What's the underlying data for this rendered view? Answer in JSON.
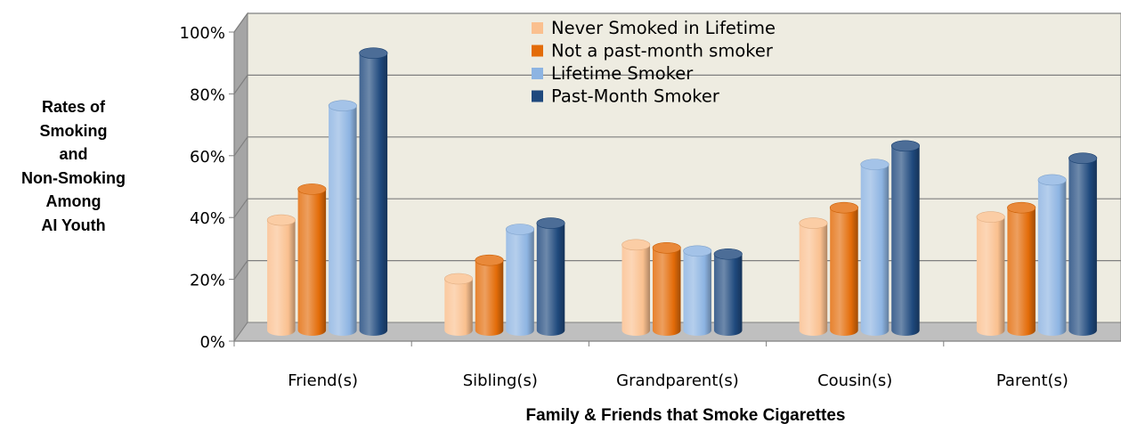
{
  "chart_data": {
    "type": "bar",
    "title": "",
    "ylabel_lines": [
      "Rates of",
      "Smoking",
      "and",
      "Non-Smoking",
      "Among",
      "AI Youth"
    ],
    "xlabel": "Family & Friends that Smoke Cigarettes",
    "categories": [
      "Friend(s)",
      "Sibling(s)",
      "Grandparent(s)",
      "Cousin(s)",
      "Parent(s)"
    ],
    "series": [
      {
        "name": "Never Smoked in Lifetime",
        "color": "#FAC08F",
        "values": [
          36,
          17,
          28,
          35,
          37
        ]
      },
      {
        "name": "Not a past-month smoker",
        "color": "#E36C09",
        "values": [
          46,
          23,
          27,
          40,
          40
        ]
      },
      {
        "name": "Lifetime Smoker",
        "color": "#8DB4E2",
        "values": [
          73,
          33,
          26,
          54,
          49
        ]
      },
      {
        "name": "Past-Month Smoker",
        "color": "#1F497D",
        "values": [
          90,
          35,
          25,
          60,
          56
        ]
      }
    ],
    "ylim": [
      0,
      100
    ],
    "yticks": [
      "0%",
      "20%",
      "40%",
      "60%",
      "80%",
      "100%"
    ],
    "grid": true,
    "legend_position": "top-center",
    "style": "3d-cylinder"
  }
}
